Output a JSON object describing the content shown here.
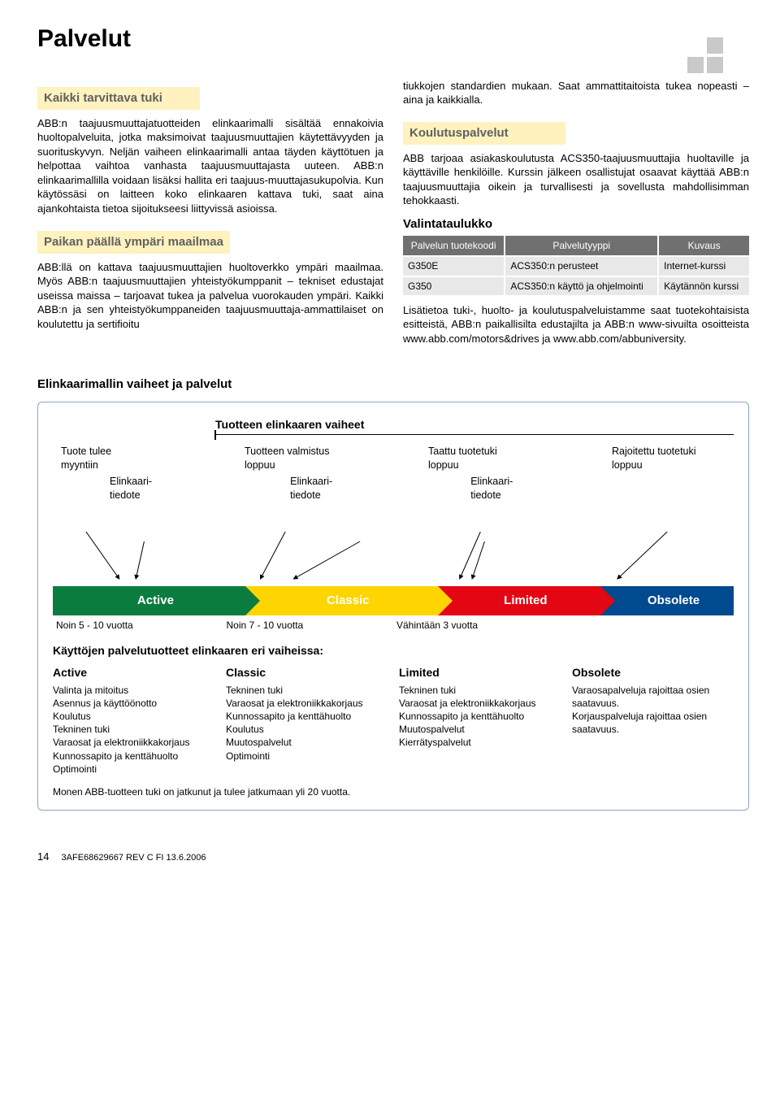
{
  "page_title": "Palvelut",
  "left": {
    "h1": "Kaikki tarvittava tuki",
    "p1": "ABB:n taajuusmuuttajatuotteiden elinkaarimalli sisältää ennakoivia huoltopalveluita, jotka maksimoivat taajuusmuuttajien käytettävyyden ja suorituskyvyn. Neljän vaiheen elinkaarimalli antaa täyden käyttötuen ja helpottaa vaihtoa vanhasta taajuusmuuttajasta uuteen. ABB:n elinkaarimallilla voidaan lisäksi hallita eri taajuus-muuttajasukupolvia. Kun käytössäsi on laitteen koko elinkaaren kattava tuki, saat aina ajankohtaista tietoa sijoitukseesi liittyvissä asioissa.",
    "h2": "Paikan päällä ympäri maailmaa",
    "p2": "ABB:llä on kattava taajuusmuuttajien huoltoverkko ympäri maailmaa. Myös ABB:n taajuusmuuttajien yhteistyökumppanit – tekniset edustajat useissa maissa – tarjoavat tukea ja palvelua vuorokauden ympäri. Kaikki ABB:n ja sen yhteistyökumppaneiden taajuusmuuttaja-ammattilaiset on koulutettu ja sertifioitu"
  },
  "right": {
    "top_cont": "tiukkojen standardien mukaan. Saat ammattitaitoista tukea nopeasti – aina ja kaikkialla.",
    "h1": "Koulutuspalvelut",
    "p1": "ABB tarjoaa asiakaskoulutusta ACS350-taajuusmuuttajia huoltaville ja käyttäville henkilöille. Kurssin jälkeen osallistujat osaavat käyttää ABB:n taajuusmuuttajia oikein ja turvallisesti ja sovellusta mahdollisimman tehokkaasti.",
    "sel_title": "Valintataulukko",
    "table": {
      "columns": [
        "Palvelun tuotekoodi",
        "Palvelutyyppi",
        "Kuvaus"
      ],
      "rows": [
        [
          "G350E",
          "ACS350:n perusteet",
          "Internet-kurssi"
        ],
        [
          "G350",
          "ACS350:n käyttö ja ohjelmointi",
          "Käytännön kurssi"
        ]
      ]
    },
    "p2": "Lisätietoa tuki-, huolto- ja koulutuspalveluistamme saat tuotekohtaisista esitteistä, ABB:n paikallisilta edustajilta ja ABB:n www-sivuilta osoitteista www.abb.com/motors&drives ja www.abb.com/abbuniversity."
  },
  "lifecycle": {
    "heading": "Elinkaarimallin vaiheet ja palvelut",
    "subtitle": "Tuotteen elinkaaren vaiheet",
    "top_events": [
      "Tuote tulee myyntiin",
      "Tuotteen valmistus loppuu",
      "Taattu tuotetuki loppuu",
      "Rajoitettu tuotetuki loppuu"
    ],
    "tiedote": "Elinkaari-\ntiedote",
    "phases": [
      {
        "label": "Active",
        "color": "green",
        "dur": "Noin 5 - 10 vuotta"
      },
      {
        "label": "Classic",
        "color": "yellow",
        "dur": "Noin 7 - 10 vuotta"
      },
      {
        "label": "Limited",
        "color": "red",
        "dur": "Vähintään 3 vuotta"
      },
      {
        "label": "Obsolete",
        "color": "blue",
        "dur": ""
      }
    ],
    "services_title": "Käyttöjen palvelutuotteet elinkaaren eri vaiheissa:",
    "services": [
      {
        "title": "Active",
        "items": [
          "Valinta ja mitoitus",
          "Asennus ja käyttöönotto",
          "Koulutus",
          "Tekninen tuki",
          "Varaosat ja elektroniikkakorjaus",
          "Kunnossapito ja kenttähuolto",
          "Optimointi"
        ]
      },
      {
        "title": "Classic",
        "items": [
          "Tekninen tuki",
          "Varaosat ja elektroniikkakorjaus",
          "Kunnossapito ja kenttähuolto",
          "Koulutus",
          "Muutospalvelut",
          "Optimointi"
        ]
      },
      {
        "title": "Limited",
        "items": [
          "Tekninen tuki",
          "Varaosat ja elektroniikkakorjaus",
          "Kunnossapito ja kenttähuolto",
          "Muutospalvelut",
          "Kierrätyspalvelut"
        ]
      },
      {
        "title": "Obsolete",
        "items": [
          "Varaosapalveluja rajoittaa osien saatavuus.",
          "Korjauspalveluja rajoittaa osien saatavuus."
        ]
      }
    ],
    "footnote": "Monen ABB-tuotteen tuki on jatkunut ja tulee jatkumaan yli 20 vuotta."
  },
  "footer": {
    "page_no": "14",
    "doc_ref": "3AFE68629667 REV C FI 13.6.2006"
  },
  "colors": {
    "green": "#0a7d3e",
    "yellow": "#ffd500",
    "red": "#e30613",
    "blue": "#004a8f",
    "grey_header": "#606060",
    "cream": "#fff2bf",
    "table_th": "#707070",
    "table_td": "#e8e8e8"
  }
}
